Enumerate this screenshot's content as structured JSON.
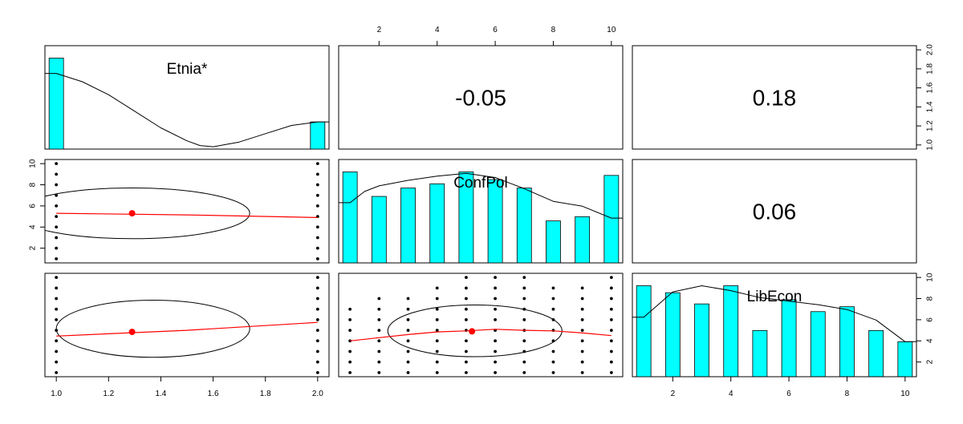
{
  "chart_data": {
    "type": "scatter",
    "layout": "pairs-panels 3x3",
    "variables": [
      "Etnia*",
      "ConfPol",
      "LibEcon"
    ],
    "correlations": [
      {
        "row": 0,
        "col": 1,
        "label": "-0.05"
      },
      {
        "row": 0,
        "col": 2,
        "label": "0.18"
      },
      {
        "row": 1,
        "col": 2,
        "label": "0.06"
      }
    ],
    "scales": [
      {
        "min": 1,
        "max": 2,
        "ticks": [
          1.0,
          1.2,
          1.4,
          1.6,
          1.8,
          2.0
        ],
        "tick_labels": [
          "1.0",
          "1.2",
          "1.4",
          "1.6",
          "1.8",
          "2.0"
        ]
      },
      {
        "min": 1,
        "max": 10,
        "ticks": [
          2,
          4,
          6,
          8,
          10
        ],
        "tick_labels": [
          "2",
          "4",
          "6",
          "8",
          "10"
        ]
      },
      {
        "min": 1,
        "max": 10,
        "ticks": [
          2,
          4,
          6,
          8,
          10
        ],
        "tick_labels": [
          "2",
          "4",
          "6",
          "8",
          "10"
        ]
      }
    ],
    "histograms": [
      {
        "variable": "Etnia*",
        "bins": [
          {
            "x": 1,
            "height": 0.77
          },
          {
            "x": 2,
            "height": 0.23
          }
        ],
        "density": [
          [
            1.0,
            0.64
          ],
          [
            1.1,
            0.57
          ],
          [
            1.2,
            0.46
          ],
          [
            1.3,
            0.32
          ],
          [
            1.4,
            0.18
          ],
          [
            1.5,
            0.07
          ],
          [
            1.55,
            0.03
          ],
          [
            1.6,
            0.02
          ],
          [
            1.7,
            0.06
          ],
          [
            1.8,
            0.13
          ],
          [
            1.9,
            0.2
          ],
          [
            2.0,
            0.23
          ]
        ]
      },
      {
        "variable": "ConfPol",
        "bins": [
          {
            "x": 1,
            "height": 0.13
          },
          {
            "x": 2,
            "height": 0.095
          },
          {
            "x": 3,
            "height": 0.107
          },
          {
            "x": 4,
            "height": 0.113
          },
          {
            "x": 5,
            "height": 0.13
          },
          {
            "x": 6,
            "height": 0.119
          },
          {
            "x": 7,
            "height": 0.107
          },
          {
            "x": 8,
            "height": 0.06
          },
          {
            "x": 9,
            "height": 0.066
          },
          {
            "x": 10,
            "height": 0.125
          }
        ],
        "density": [
          [
            1.0,
            0.086
          ],
          [
            1.5,
            0.102
          ],
          [
            2.0,
            0.11
          ],
          [
            3.0,
            0.118
          ],
          [
            4.0,
            0.124
          ],
          [
            5.0,
            0.128
          ],
          [
            6.0,
            0.122
          ],
          [
            7.0,
            0.106
          ],
          [
            8.0,
            0.088
          ],
          [
            9.0,
            0.081
          ],
          [
            10.0,
            0.064
          ]
        ]
      },
      {
        "variable": "LibEcon",
        "bins": [
          {
            "x": 1,
            "height": 0.13
          },
          {
            "x": 2,
            "height": 0.12
          },
          {
            "x": 3,
            "height": 0.104
          },
          {
            "x": 4,
            "height": 0.13
          },
          {
            "x": 5,
            "height": 0.066
          },
          {
            "x": 6,
            "height": 0.11
          },
          {
            "x": 7,
            "height": 0.093
          },
          {
            "x": 8,
            "height": 0.1
          },
          {
            "x": 9,
            "height": 0.066
          },
          {
            "x": 10,
            "height": 0.05
          }
        ],
        "density": [
          [
            1.0,
            0.085
          ],
          [
            2.0,
            0.121
          ],
          [
            3.0,
            0.13
          ],
          [
            4.0,
            0.123
          ],
          [
            5.0,
            0.113
          ],
          [
            6.0,
            0.108
          ],
          [
            7.0,
            0.103
          ],
          [
            8.0,
            0.096
          ],
          [
            9.0,
            0.081
          ],
          [
            10.0,
            0.05
          ]
        ]
      }
    ],
    "scatter_panels": [
      {
        "row": 1,
        "col": 0,
        "points": [
          [
            1,
            1
          ],
          [
            1,
            2
          ],
          [
            1,
            3
          ],
          [
            1,
            4
          ],
          [
            1,
            5
          ],
          [
            1,
            6
          ],
          [
            1,
            7
          ],
          [
            1,
            8
          ],
          [
            1,
            9
          ],
          [
            1,
            10
          ],
          [
            2,
            1
          ],
          [
            2,
            2
          ],
          [
            2,
            3
          ],
          [
            2,
            4
          ],
          [
            2,
            5
          ],
          [
            2,
            6
          ],
          [
            2,
            7
          ],
          [
            2,
            8
          ],
          [
            2,
            9
          ],
          [
            2,
            10
          ]
        ],
        "ellipse": {
          "cx": 1.29,
          "cy": 5.3,
          "rx": 0.45,
          "ry": 2.4
        },
        "loess": [
          [
            1.0,
            5.3
          ],
          [
            1.5,
            5.15
          ],
          [
            2.0,
            4.9
          ]
        ],
        "mean": [
          1.29,
          5.3
        ]
      },
      {
        "row": 2,
        "col": 0,
        "points": [
          [
            1,
            1
          ],
          [
            1,
            2
          ],
          [
            1,
            3
          ],
          [
            1,
            4
          ],
          [
            1,
            5
          ],
          [
            1,
            6
          ],
          [
            1,
            7
          ],
          [
            1,
            8
          ],
          [
            1,
            9
          ],
          [
            1,
            10
          ],
          [
            2,
            1
          ],
          [
            2,
            2
          ],
          [
            2,
            3
          ],
          [
            2,
            4
          ],
          [
            2,
            5
          ],
          [
            2,
            6
          ],
          [
            2,
            7
          ],
          [
            2,
            8
          ],
          [
            2,
            9
          ],
          [
            2,
            10
          ]
        ],
        "ellipse": {
          "cx": 1.37,
          "cy": 5.15,
          "rx": 0.37,
          "ry": 2.7
        },
        "loess": [
          [
            1.0,
            4.45
          ],
          [
            1.5,
            5.0
          ],
          [
            2.0,
            5.75
          ]
        ],
        "mean": [
          1.29,
          4.85
        ]
      },
      {
        "row": 2,
        "col": 1,
        "points": [
          [
            1,
            1
          ],
          [
            1,
            2
          ],
          [
            1,
            3
          ],
          [
            1,
            4
          ],
          [
            1,
            5
          ],
          [
            1,
            6
          ],
          [
            1,
            7
          ],
          [
            2,
            1
          ],
          [
            2,
            2
          ],
          [
            2,
            3
          ],
          [
            2,
            4
          ],
          [
            2,
            5
          ],
          [
            2,
            6
          ],
          [
            2,
            7
          ],
          [
            2,
            8
          ],
          [
            3,
            1
          ],
          [
            3,
            2
          ],
          [
            3,
            3
          ],
          [
            3,
            4
          ],
          [
            3,
            5
          ],
          [
            3,
            6
          ],
          [
            3,
            7
          ],
          [
            3,
            8
          ],
          [
            4,
            1
          ],
          [
            4,
            2
          ],
          [
            4,
            3
          ],
          [
            4,
            4
          ],
          [
            4,
            5
          ],
          [
            4,
            6
          ],
          [
            4,
            7
          ],
          [
            4,
            8
          ],
          [
            4,
            9
          ],
          [
            5,
            1
          ],
          [
            5,
            2
          ],
          [
            5,
            3
          ],
          [
            5,
            4
          ],
          [
            5,
            5
          ],
          [
            5,
            6
          ],
          [
            5,
            7
          ],
          [
            5,
            8
          ],
          [
            5,
            9
          ],
          [
            5,
            10
          ],
          [
            6,
            1
          ],
          [
            6,
            2
          ],
          [
            6,
            3
          ],
          [
            6,
            4
          ],
          [
            6,
            5
          ],
          [
            6,
            6
          ],
          [
            6,
            7
          ],
          [
            6,
            8
          ],
          [
            6,
            9
          ],
          [
            6,
            10
          ],
          [
            7,
            1
          ],
          [
            7,
            2
          ],
          [
            7,
            3
          ],
          [
            7,
            4
          ],
          [
            7,
            5
          ],
          [
            7,
            6
          ],
          [
            7,
            7
          ],
          [
            7,
            8
          ],
          [
            7,
            9
          ],
          [
            7,
            10
          ],
          [
            8,
            1
          ],
          [
            8,
            2
          ],
          [
            8,
            3
          ],
          [
            8,
            4
          ],
          [
            8,
            5
          ],
          [
            8,
            6
          ],
          [
            8,
            7
          ],
          [
            8,
            8
          ],
          [
            8,
            9
          ],
          [
            9,
            1
          ],
          [
            9,
            2
          ],
          [
            9,
            3
          ],
          [
            9,
            4
          ],
          [
            9,
            5
          ],
          [
            9,
            6
          ],
          [
            9,
            7
          ],
          [
            9,
            8
          ],
          [
            9,
            9
          ],
          [
            10,
            1
          ],
          [
            10,
            2
          ],
          [
            10,
            3
          ],
          [
            10,
            4
          ],
          [
            10,
            5
          ],
          [
            10,
            6
          ],
          [
            10,
            7
          ],
          [
            10,
            8
          ],
          [
            10,
            9
          ],
          [
            10,
            10
          ]
        ],
        "ellipse": {
          "cx": 5.3,
          "cy": 4.95,
          "rx": 3.0,
          "ry": 2.45
        },
        "loess": [
          [
            1.0,
            4.0
          ],
          [
            2.0,
            4.3
          ],
          [
            3.0,
            4.6
          ],
          [
            4.0,
            4.85
          ],
          [
            5.0,
            4.95
          ],
          [
            6.0,
            5.1
          ],
          [
            7.0,
            5.0
          ],
          [
            8.0,
            4.95
          ],
          [
            9.0,
            4.75
          ],
          [
            10.0,
            4.5
          ]
        ],
        "mean": [
          5.2,
          4.9
        ]
      }
    ],
    "colors": {
      "bars": "#00ffff",
      "loess": "#ff0000",
      "mean_point": "#ff0000",
      "points": "#000000",
      "ellipse": "#000000"
    },
    "top_axis_panel_col": 1,
    "right_axis_panels": [
      {
        "row": 0,
        "scale": 0
      },
      {
        "row": 2,
        "scale": 2
      }
    ],
    "left_axis_panel_row": 1,
    "bottom_axis_panels": [
      {
        "col": 0,
        "scale": 0
      },
      {
        "col": 2,
        "scale": 2
      }
    ]
  }
}
